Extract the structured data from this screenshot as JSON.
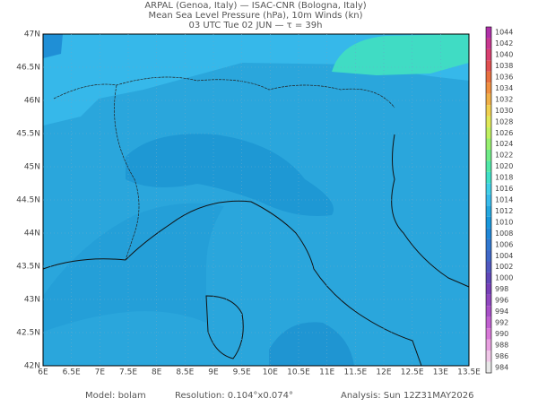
{
  "header": {
    "line1": "ARPAL (Genoa, Italy)  —  ISAC-CNR (Bologna, Italy)",
    "line2": "Mean Sea Level Pressure (hPa), 10m Winds (kn)",
    "line3": "03 UTC Tue 02 JUN  —  τ = 39h"
  },
  "map": {
    "lon_labels": [
      "6E",
      "6.5E",
      "7E",
      "7.5E",
      "8E",
      "8.5E",
      "9E",
      "9.5E",
      "10E",
      "10.5E",
      "11E",
      "11.5E",
      "12E",
      "12.5E",
      "13E",
      "13.5E"
    ],
    "lat_labels": [
      "47N",
      "46.5N",
      "46N",
      "45.5N",
      "45N",
      "44.5N",
      "44N",
      "43.5N",
      "43N",
      "42.5N",
      "42N"
    ]
  },
  "colorbar": {
    "levels": [
      984,
      986,
      988,
      990,
      992,
      994,
      996,
      998,
      1000,
      1002,
      1004,
      1006,
      1008,
      1010,
      1012,
      1014,
      1016,
      1018,
      1020,
      1022,
      1024,
      1026,
      1028,
      1030,
      1032,
      1034,
      1036,
      1038,
      1040,
      1042,
      1044
    ],
    "colors": [
      "#e8e8e8",
      "#f0c8e8",
      "#e8a0e0",
      "#d878d8",
      "#c060d0",
      "#a850c8",
      "#9048c0",
      "#7840b8",
      "#6048b8",
      "#5058c0",
      "#4068c8",
      "#3078d0",
      "#2088d8",
      "#1898dc",
      "#24a8e0",
      "#38bcec",
      "#40d0e8",
      "#40e0c8",
      "#50e8a8",
      "#70ec88",
      "#98f070",
      "#c0f060",
      "#e0e858",
      "#f0d050",
      "#f0b048",
      "#f09040",
      "#e87040",
      "#e05050",
      "#d84070",
      "#c83890",
      "#b030a8"
    ]
  },
  "footer": {
    "model": "Model: bolam",
    "resolution": "Resolution: 0.104°x0.074°",
    "analysis": "Analysis: Sun 12Z31MAY2026"
  }
}
